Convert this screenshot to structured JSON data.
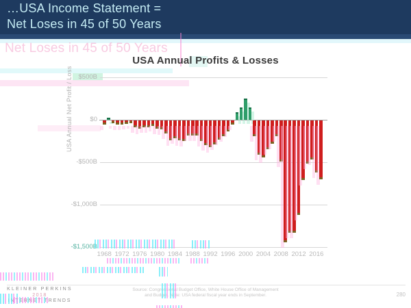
{
  "header": {
    "line1": "…USA Income Statement =",
    "line2": "Net Loses in 45 of 50 Years"
  },
  "transition_ghost": {
    "echo_text": "Net Loses in 45 of 50 Years"
  },
  "chart_data": {
    "type": "bar",
    "title": "USA Annual Profits & Losses",
    "ylabel": "USA Annual Net Profit / Loss",
    "unit": "$B",
    "ylim": [
      -1500,
      500
    ],
    "grid": true,
    "y_ticks": [
      {
        "label": "$500B",
        "value": 500
      },
      {
        "label": "$0",
        "value": 0
      },
      {
        "label": "-$500B",
        "value": -500
      },
      {
        "label": "-$1,000B",
        "value": -1000
      },
      {
        "label": "-$1,500B",
        "value": -1500
      }
    ],
    "x_tick_years": [
      1968,
      1972,
      1976,
      1980,
      1984,
      1988,
      1992,
      1996,
      2000,
      2004,
      2008,
      2012,
      2016
    ],
    "years": [
      1968,
      1969,
      1970,
      1971,
      1972,
      1973,
      1974,
      1975,
      1976,
      1977,
      1978,
      1979,
      1980,
      1981,
      1982,
      1983,
      1984,
      1985,
      1986,
      1987,
      1988,
      1989,
      1990,
      1991,
      1992,
      1993,
      1994,
      1995,
      1996,
      1997,
      1998,
      1999,
      2000,
      2001,
      2002,
      2003,
      2004,
      2005,
      2006,
      2007,
      2008,
      2009,
      2010,
      2011,
      2012,
      2013,
      2014,
      2015,
      2016,
      2017
    ],
    "values": [
      -25.2,
      3.2,
      -2.8,
      -23.0,
      -23.4,
      -14.9,
      -6.1,
      -53.2,
      -73.7,
      -53.7,
      -59.2,
      -40.7,
      -73.8,
      -79.0,
      -128.0,
      -207.8,
      -185.4,
      -212.3,
      -221.2,
      -149.7,
      -155.2,
      -152.6,
      -221.0,
      -269.2,
      -290.3,
      -255.1,
      -203.2,
      -164.0,
      -107.4,
      -21.9,
      69.3,
      125.6,
      236.2,
      128.2,
      -157.8,
      -377.6,
      -412.7,
      -318.3,
      -248.2,
      -160.7,
      -458.6,
      -1412.7,
      -1294.4,
      -1299.6,
      -1087.0,
      -679.5,
      -484.6,
      -438.5,
      -584.7,
      -665.4
    ],
    "colors": {
      "negative": "#cf1d1d",
      "negative_cap": "#7d6022",
      "positive": "#2f9e69",
      "positive_cap": "#166f46",
      "gridline": "#d6d6d6",
      "zero_line": "#9a9a9a",
      "axis_text": "#b4b4b4",
      "ghost_tick_teal": "#56b3a2"
    },
    "legend": null
  },
  "footer": {
    "brand_line1": "KLEINER PERKINS",
    "brand_line2": "2018",
    "brand_line3": "INTERNET TRENDS",
    "source_line1": "Source: Congressional Budget Office, White House Office of Management",
    "source_line2": "and Budget.  Note: USA federal fiscal year ends in September.",
    "page_number": "280"
  }
}
